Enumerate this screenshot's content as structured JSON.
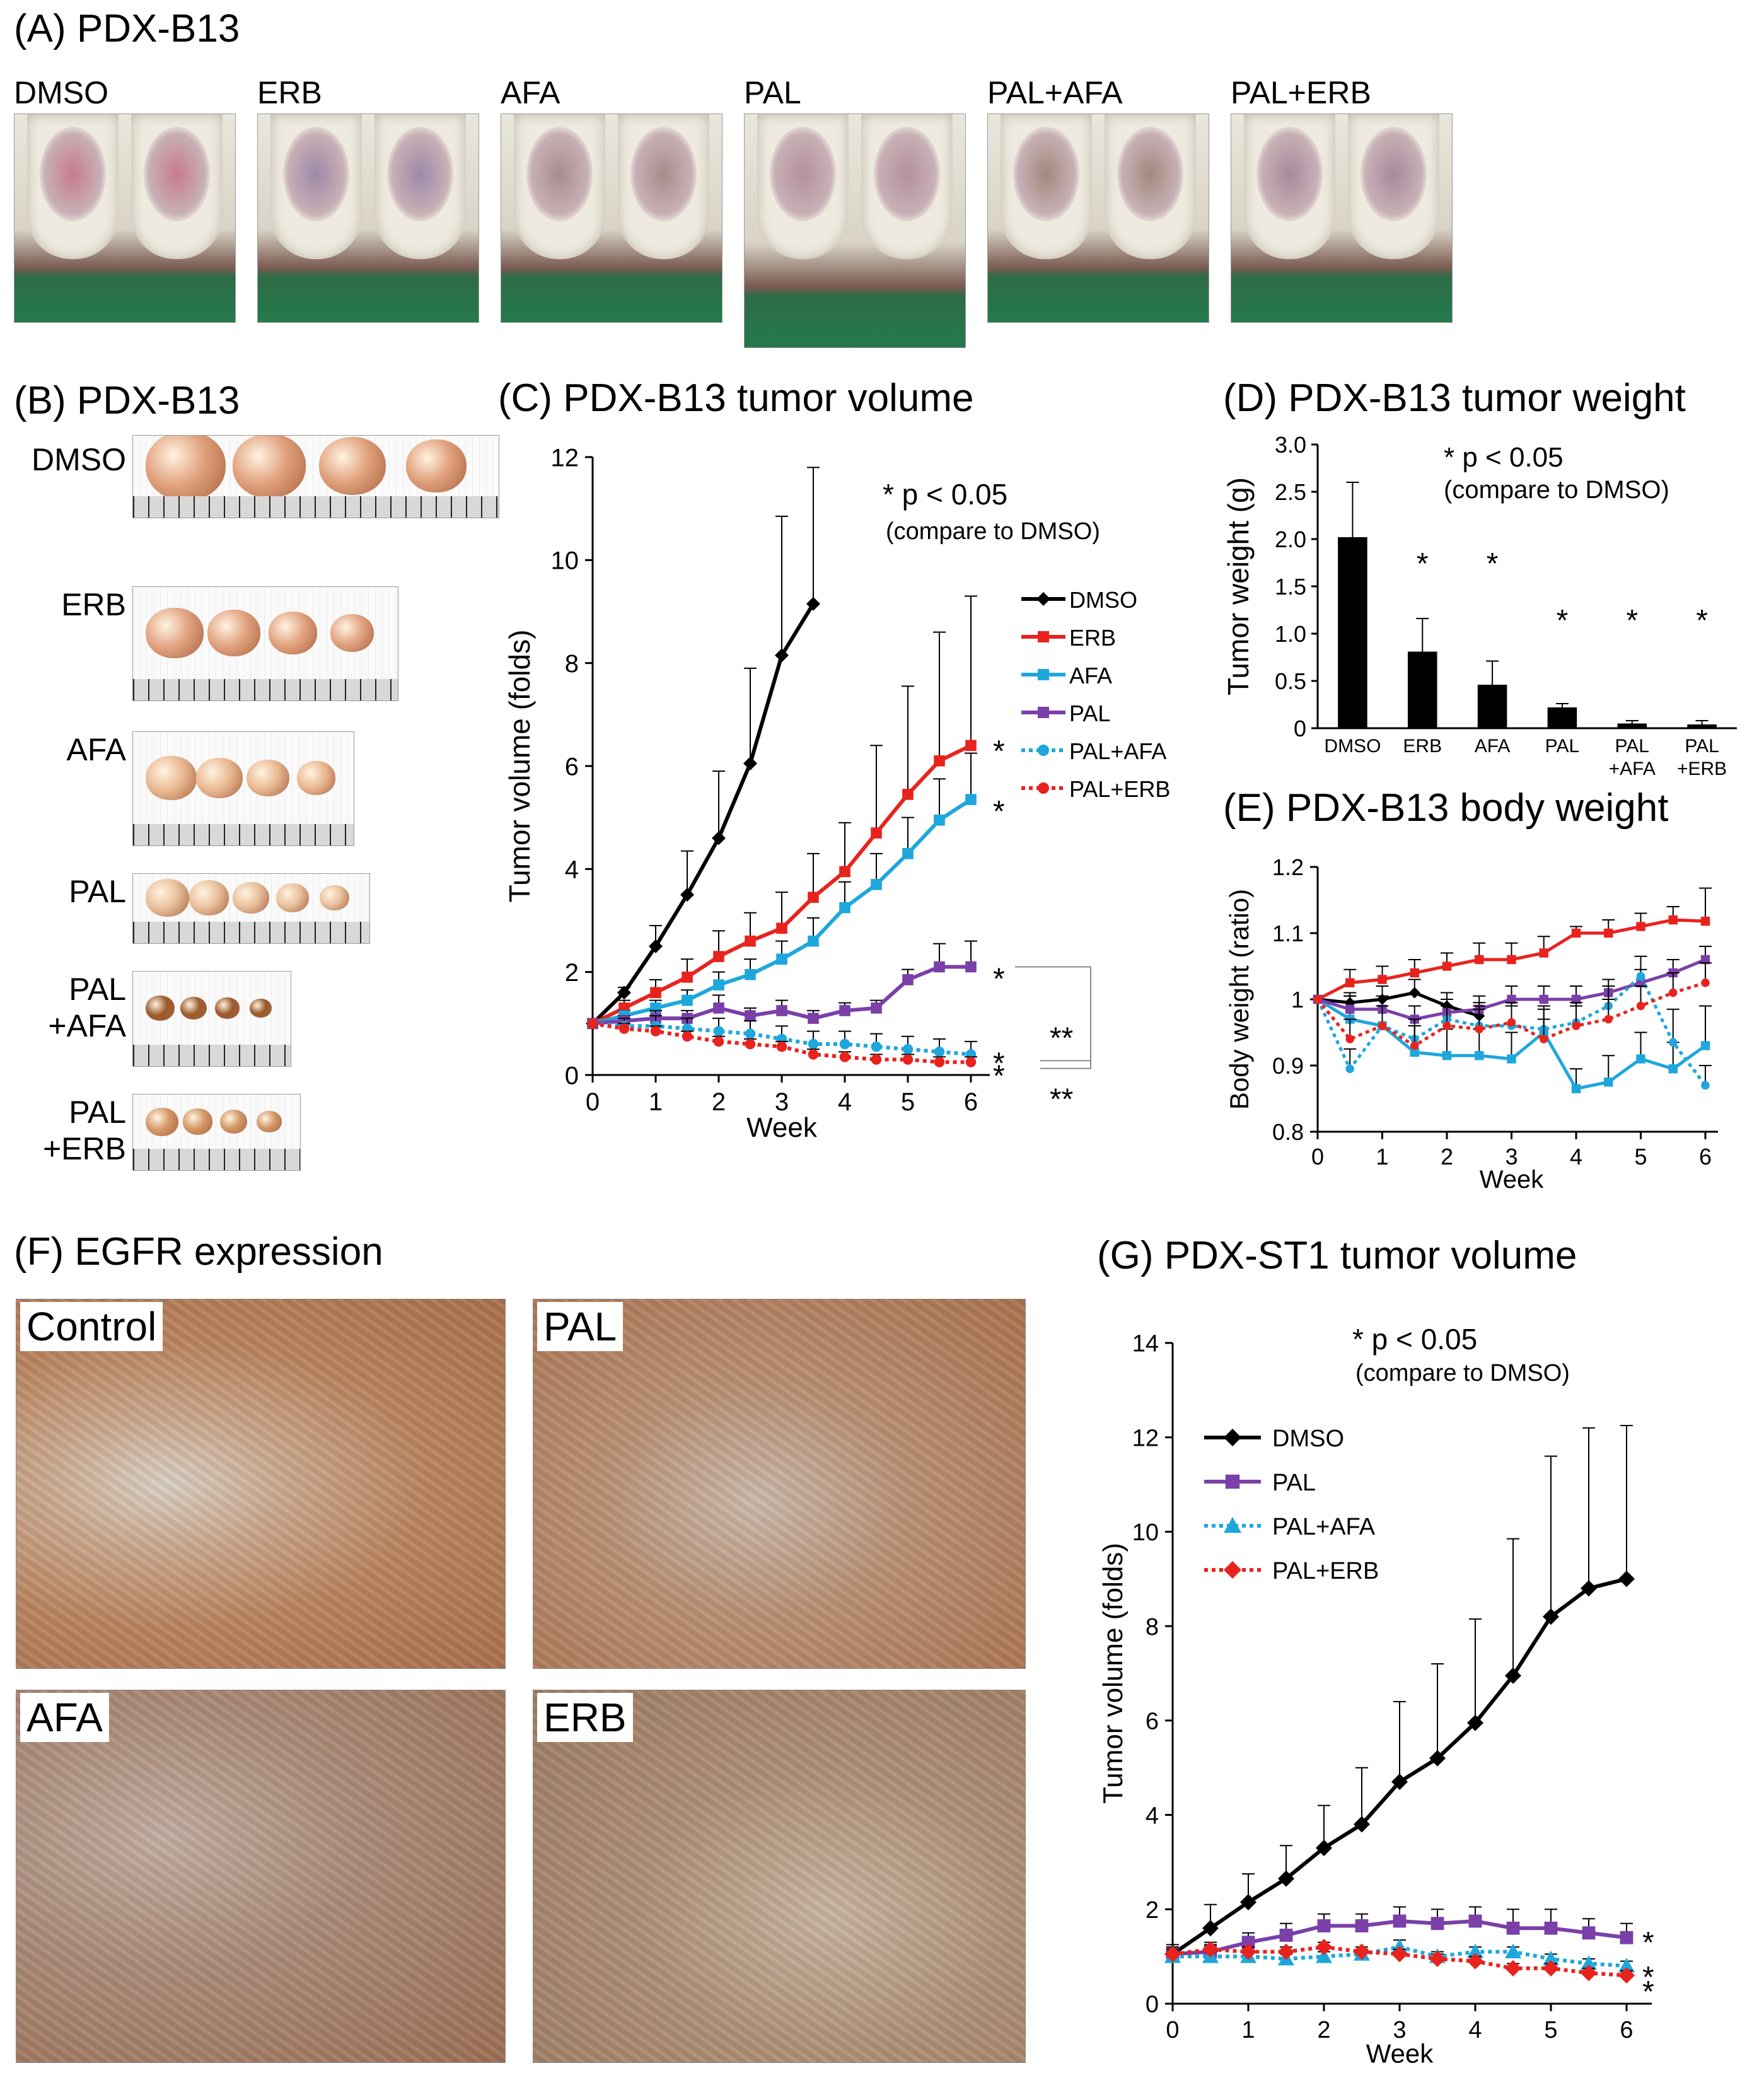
{
  "panelA": {
    "title": "(A) PDX-B13",
    "groups": [
      "DMSO",
      "ERB",
      "AFA",
      "PAL",
      "PAL+AFA",
      "PAL+ERB"
    ]
  },
  "panelB": {
    "title": "(B) PDX-B13",
    "groups": [
      "DMSO",
      "ERB",
      "AFA",
      "PAL",
      "PAL\n+AFA",
      "PAL\n+ERB"
    ]
  },
  "panelF": {
    "title": "(F) EGFR expression",
    "images": [
      "Control",
      "PAL",
      "AFA",
      "ERB"
    ]
  },
  "colors": {
    "DMSO": "#000000",
    "ERB": "#e8231e",
    "AFA": "#1ea7dc",
    "PAL": "#7a3fa8",
    "PAL+AFA": "#1ea7dc",
    "PAL+ERB": "#e8231e"
  },
  "chart_data": [
    {
      "id": "C",
      "type": "line",
      "title": "(C) PDX-B13 tumor volume",
      "xlabel": "Week",
      "ylabel": "Tumor volume (folds)",
      "xlim": [
        0,
        6
      ],
      "ylim": [
        0,
        12
      ],
      "xticks": [
        0,
        1,
        2,
        3,
        4,
        5,
        6
      ],
      "yticks": [
        0,
        2,
        4,
        6,
        8,
        10,
        12
      ],
      "annotation": [
        "* p < 0.05",
        "(compare to DMSO)"
      ],
      "series": [
        {
          "name": "DMSO",
          "x": [
            0,
            0.5,
            1,
            1.5,
            2,
            2.5,
            3,
            3.5
          ],
          "values": [
            1,
            1.6,
            2.5,
            3.5,
            4.6,
            6.05,
            8.15,
            9.15
          ],
          "err": [
            0,
            0.1,
            0.4,
            0.85,
            1.3,
            1.85,
            2.7,
            2.65
          ]
        },
        {
          "name": "ERB",
          "x": [
            0,
            0.5,
            1,
            1.5,
            2,
            2.5,
            3,
            3.5,
            4,
            4.5,
            5,
            5.5,
            6
          ],
          "values": [
            1,
            1.3,
            1.6,
            1.9,
            2.3,
            2.6,
            2.85,
            3.45,
            3.95,
            4.7,
            5.45,
            6.1,
            6.4
          ],
          "err": [
            0,
            0.15,
            0.25,
            0.35,
            0.5,
            0.55,
            0.7,
            0.85,
            0.95,
            1.7,
            2.1,
            2.5,
            2.9
          ]
        },
        {
          "name": "AFA",
          "x": [
            0,
            0.5,
            1,
            1.5,
            2,
            2.5,
            3,
            3.5,
            4,
            4.5,
            5,
            5.5,
            6
          ],
          "values": [
            1,
            1.15,
            1.3,
            1.45,
            1.75,
            1.95,
            2.25,
            2.6,
            3.25,
            3.7,
            4.3,
            4.95,
            5.35
          ],
          "err": [
            0,
            0.1,
            0.15,
            0.2,
            0.25,
            0.3,
            0.35,
            0.45,
            0.5,
            0.6,
            0.7,
            0.8,
            0.9
          ]
        },
        {
          "name": "PAL",
          "x": [
            0,
            0.5,
            1,
            1.5,
            2,
            2.5,
            3,
            3.5,
            4,
            4.5,
            5,
            5.5,
            6
          ],
          "values": [
            1,
            1.05,
            1.1,
            1.1,
            1.3,
            1.15,
            1.25,
            1.1,
            1.25,
            1.3,
            1.85,
            2.1,
            2.1
          ],
          "err": [
            0,
            0.1,
            0.15,
            0.15,
            0.25,
            0.15,
            0.2,
            0.15,
            0.15,
            0.15,
            0.2,
            0.45,
            0.5
          ]
        },
        {
          "name": "PAL+AFA",
          "x": [
            0,
            0.5,
            1,
            1.5,
            2,
            2.5,
            3,
            3.5,
            4,
            4.5,
            5,
            5.5,
            6
          ],
          "values": [
            1,
            0.95,
            0.95,
            0.9,
            0.85,
            0.8,
            0.7,
            0.6,
            0.6,
            0.55,
            0.5,
            0.45,
            0.4
          ],
          "err": [
            0,
            0.15,
            0.2,
            0.2,
            0.25,
            0.25,
            0.25,
            0.25,
            0.25,
            0.25,
            0.25,
            0.25,
            0.25
          ]
        },
        {
          "name": "PAL+ERB",
          "x": [
            0,
            0.5,
            1,
            1.5,
            2,
            2.5,
            3,
            3.5,
            4,
            4.5,
            5,
            5.5,
            6
          ],
          "values": [
            1,
            0.9,
            0.85,
            0.75,
            0.65,
            0.6,
            0.55,
            0.4,
            0.35,
            0.3,
            0.3,
            0.25,
            0.25
          ],
          "err": [
            0,
            0.1,
            0.1,
            0.1,
            0.1,
            0.1,
            0.1,
            0.1,
            0.1,
            0.1,
            0.1,
            0.1,
            0.1
          ]
        }
      ],
      "sig_marks": {
        "ERB": "*",
        "AFA": "*",
        "PAL": "*",
        "PAL+AFA": "*",
        "PAL+ERB": "*",
        "bracket_upper": "**",
        "bracket_lower": "**"
      }
    },
    {
      "id": "D",
      "type": "bar",
      "title": "(D) PDX-B13 tumor weight",
      "ylabel": "Tumor weight (g)",
      "ylim": [
        0,
        3.0
      ],
      "yticks": [
        "0",
        "0.5",
        "1.0",
        "1.5",
        "2.0",
        "2.5",
        "3.0"
      ],
      "categories": [
        "DMSO",
        "ERB",
        "AFA",
        "PAL",
        "PAL\n+AFA",
        "PAL\n+ERB"
      ],
      "values": [
        2.02,
        0.81,
        0.46,
        0.22,
        0.05,
        0.04
      ],
      "err": [
        0.58,
        0.35,
        0.25,
        0.04,
        0.03,
        0.04
      ],
      "sig": [
        "",
        "*",
        "*",
        "*",
        "*",
        "*"
      ],
      "annotation": [
        "* p < 0.05",
        "(compare to DMSO)"
      ]
    },
    {
      "id": "E",
      "type": "line",
      "title": "(E) PDX-B13 body weight",
      "xlabel": "Week",
      "ylabel": "Body weight (ratio)",
      "xlim": [
        0,
        6
      ],
      "ylim": [
        0.8,
        1.2
      ],
      "xticks": [
        0,
        1,
        2,
        3,
        4,
        5,
        6
      ],
      "yticks": [
        "0.8",
        "0.9",
        "1",
        "1.1",
        "1.2"
      ],
      "series": [
        {
          "name": "DMSO",
          "x": [
            0,
            0.5,
            1,
            1.5,
            2,
            2.5
          ],
          "values": [
            1,
            0.995,
            1.0,
            1.01,
            0.99,
            0.975
          ],
          "err": [
            0,
            0.01,
            0.02,
            0.02,
            0.02,
            0.02
          ]
        },
        {
          "name": "ERB",
          "x": [
            0,
            0.5,
            1,
            1.5,
            2,
            2.5,
            3,
            3.5,
            4,
            4.5,
            5,
            5.5,
            6
          ],
          "values": [
            1,
            1.025,
            1.03,
            1.04,
            1.05,
            1.06,
            1.06,
            1.07,
            1.1,
            1.1,
            1.11,
            1.12,
            1.118
          ],
          "err": [
            0,
            0.02,
            0.02,
            0.02,
            0.02,
            0.025,
            0.025,
            0.025,
            0.01,
            0.02,
            0.02,
            0.02,
            0.05
          ]
        },
        {
          "name": "AFA",
          "x": [
            0,
            0.5,
            1,
            1.5,
            2,
            2.5,
            3,
            3.5,
            4,
            4.5,
            5,
            5.5,
            6
          ],
          "values": [
            1,
            0.97,
            0.96,
            0.92,
            0.915,
            0.915,
            0.91,
            0.95,
            0.865,
            0.875,
            0.91,
            0.895,
            0.93
          ],
          "err": [
            0,
            0.04,
            0.04,
            0.04,
            0.04,
            0.04,
            0.04,
            0.04,
            0.03,
            0.04,
            0.04,
            0.04,
            0.06
          ]
        },
        {
          "name": "PAL",
          "x": [
            0,
            0.5,
            1,
            1.5,
            2,
            2.5,
            3,
            3.5,
            4,
            4.5,
            5,
            5.5,
            6
          ],
          "values": [
            1,
            0.985,
            0.985,
            0.97,
            0.98,
            0.985,
            1.0,
            1.0,
            1.0,
            1.01,
            1.025,
            1.04,
            1.06
          ],
          "err": [
            0,
            0.02,
            0.02,
            0.02,
            0.02,
            0.02,
            0.02,
            0.02,
            0.02,
            0.02,
            0.02,
            0.02,
            0.02
          ]
        },
        {
          "name": "PAL+AFA",
          "x": [
            0,
            0.5,
            1,
            1.5,
            2,
            2.5,
            3,
            3.5,
            4,
            4.5,
            5,
            5.5,
            6
          ],
          "values": [
            1,
            0.895,
            0.96,
            0.94,
            0.97,
            0.96,
            0.96,
            0.955,
            0.965,
            0.99,
            1.035,
            0.935,
            0.87
          ],
          "err": [
            0,
            0.03,
            0.03,
            0.03,
            0.03,
            0.03,
            0.03,
            0.03,
            0.03,
            0.03,
            0.03,
            0.05,
            0.03
          ]
        },
        {
          "name": "PAL+ERB",
          "x": [
            0,
            0.5,
            1,
            1.5,
            2,
            2.5,
            3,
            3.5,
            4,
            4.5,
            5,
            5.5,
            6
          ],
          "values": [
            1,
            0.94,
            0.96,
            0.93,
            0.96,
            0.955,
            0.965,
            0.94,
            0.96,
            0.97,
            0.99,
            1.01,
            1.025
          ],
          "err": [
            0,
            0.03,
            0.03,
            0.03,
            0.03,
            0.03,
            0.03,
            0.03,
            0.03,
            0.03,
            0.03,
            0.03,
            0.03
          ]
        }
      ]
    },
    {
      "id": "G",
      "type": "line",
      "title": "(G) PDX-ST1 tumor volume",
      "xlabel": "Week",
      "ylabel": "Tumor volume (folds)",
      "xlim": [
        0,
        6
      ],
      "ylim": [
        0,
        14
      ],
      "xticks": [
        0,
        1,
        2,
        3,
        4,
        5,
        6
      ],
      "yticks": [
        0,
        2,
        4,
        6,
        8,
        10,
        12,
        14
      ],
      "annotation": [
        "* p < 0.05",
        "(compare to DMSO)"
      ],
      "series": [
        {
          "name": "DMSO",
          "x": [
            0,
            0.5,
            1,
            1.5,
            2,
            2.5,
            3,
            3.5,
            4,
            4.5,
            5,
            5.5,
            6
          ],
          "values": [
            1.05,
            1.6,
            2.15,
            2.65,
            3.3,
            3.8,
            4.7,
            5.2,
            5.95,
            6.95,
            8.2,
            8.8,
            9.0
          ],
          "err": [
            0.2,
            0.5,
            0.6,
            0.7,
            0.9,
            1.2,
            1.7,
            2.0,
            2.2,
            2.9,
            3.4,
            3.4,
            3.25
          ]
        },
        {
          "name": "PAL",
          "x": [
            0,
            0.5,
            1,
            1.5,
            2,
            2.5,
            3,
            3.5,
            4,
            4.5,
            5,
            5.5,
            6
          ],
          "values": [
            1.05,
            1.1,
            1.3,
            1.45,
            1.65,
            1.65,
            1.75,
            1.7,
            1.75,
            1.6,
            1.6,
            1.5,
            1.4
          ],
          "err": [
            0.15,
            0.2,
            0.2,
            0.25,
            0.25,
            0.25,
            0.3,
            0.3,
            0.3,
            0.4,
            0.4,
            0.3,
            0.3
          ]
        },
        {
          "name": "PAL+AFA",
          "x": [
            0,
            0.5,
            1,
            1.5,
            2,
            2.5,
            3,
            3.5,
            4,
            4.5,
            5,
            5.5,
            6
          ],
          "values": [
            1.0,
            1.0,
            1.0,
            0.95,
            1.0,
            1.05,
            1.2,
            1.0,
            1.1,
            1.1,
            0.95,
            0.85,
            0.8
          ],
          "err": [
            0.1,
            0.1,
            0.1,
            0.1,
            0.1,
            0.1,
            0.15,
            0.1,
            0.1,
            0.1,
            0.1,
            0.1,
            0.1
          ]
        },
        {
          "name": "PAL+ERB",
          "x": [
            0,
            0.5,
            1,
            1.5,
            2,
            2.5,
            3,
            3.5,
            4,
            4.5,
            5,
            5.5,
            6
          ],
          "values": [
            1.05,
            1.15,
            1.1,
            1.1,
            1.2,
            1.1,
            1.05,
            0.95,
            0.9,
            0.75,
            0.75,
            0.65,
            0.6
          ],
          "err": [
            0.1,
            0.1,
            0.1,
            0.1,
            0.1,
            0.1,
            0.1,
            0.1,
            0.1,
            0.1,
            0.1,
            0.1,
            0.1
          ]
        }
      ],
      "sig_marks": {
        "PAL": "*",
        "PAL+AFA": "*",
        "PAL+ERB": "*"
      }
    }
  ]
}
